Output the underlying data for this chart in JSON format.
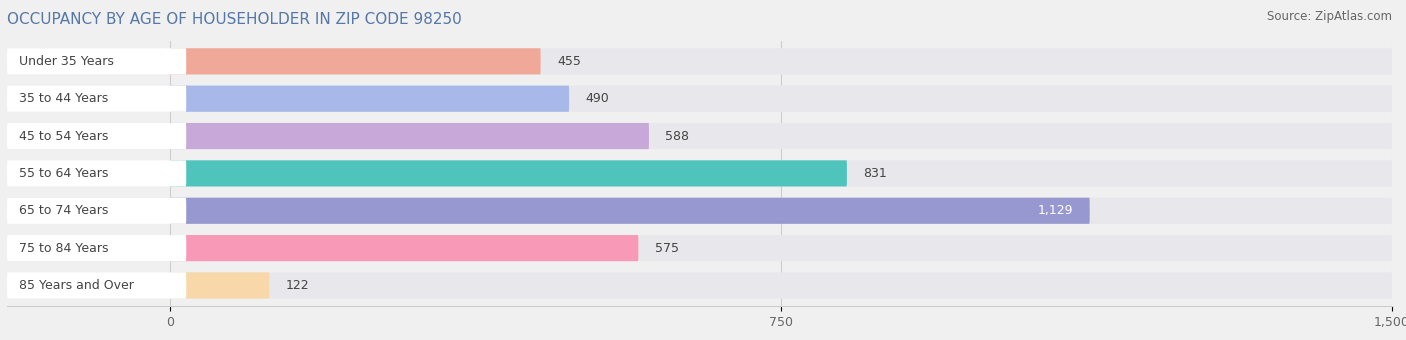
{
  "title": "OCCUPANCY BY AGE OF HOUSEHOLDER IN ZIP CODE 98250",
  "source": "Source: ZipAtlas.com",
  "categories": [
    "Under 35 Years",
    "35 to 44 Years",
    "45 to 54 Years",
    "55 to 64 Years",
    "65 to 74 Years",
    "75 to 84 Years",
    "85 Years and Over"
  ],
  "values": [
    455,
    490,
    588,
    831,
    1129,
    575,
    122
  ],
  "bar_colors": [
    "#f0a898",
    "#a8b8e8",
    "#c8a8d8",
    "#4ec4bc",
    "#9898d0",
    "#f899b8",
    "#f8d8a8"
  ],
  "xlim_max": 1500,
  "xticks": [
    0,
    750,
    1500
  ],
  "background_color": "#f0f0f0",
  "bar_bg_color": "#e8e8ec",
  "title_fontsize": 11,
  "source_fontsize": 8.5,
  "label_fontsize": 9,
  "value_fontsize": 9,
  "title_color": "#5577aa"
}
